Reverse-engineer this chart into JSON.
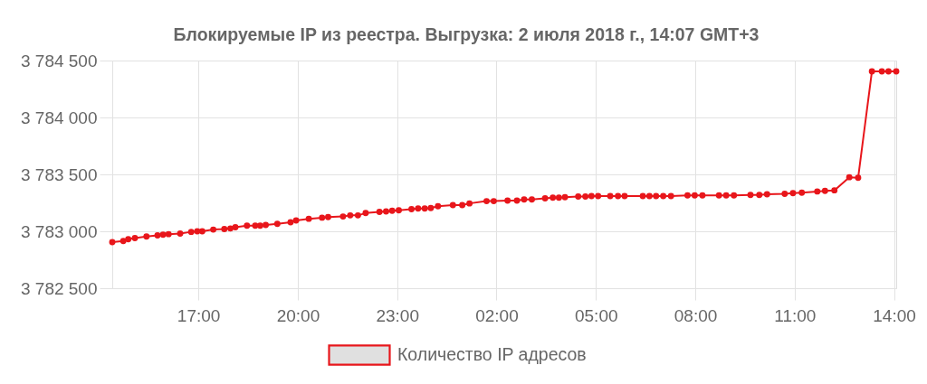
{
  "chart_data": {
    "type": "line",
    "title": "Блокируемые IP из реестра. Выгрузка: 2 июля 2018 г., 14:07 GMT+3",
    "x": [
      "2018-07-01T14:24",
      "2018-07-01T14:44",
      "2018-07-01T14:53",
      "2018-07-01T15:05",
      "2018-07-01T15:26",
      "2018-07-01T15:46",
      "2018-07-01T15:56",
      "2018-07-01T16:06",
      "2018-07-01T16:27",
      "2018-07-01T16:47",
      "2018-07-01T16:58",
      "2018-07-01T17:07",
      "2018-07-01T17:27",
      "2018-07-01T17:47",
      "2018-07-01T17:58",
      "2018-07-01T18:07",
      "2018-07-01T18:28",
      "2018-07-01T18:43",
      "2018-07-01T18:52",
      "2018-07-01T19:02",
      "2018-07-01T19:23",
      "2018-07-01T19:47",
      "2018-07-01T19:57",
      "2018-07-01T20:20",
      "2018-07-01T20:44",
      "2018-07-01T20:55",
      "2018-07-01T21:22",
      "2018-07-01T21:35",
      "2018-07-01T21:49",
      "2018-07-01T22:03",
      "2018-07-01T22:28",
      "2018-07-01T22:40",
      "2018-07-01T22:51",
      "2018-07-01T23:03",
      "2018-07-01T23:26",
      "2018-07-01T23:38",
      "2018-07-01T23:50",
      "2018-07-02T00:01",
      "2018-07-02T00:14",
      "2018-07-02T00:41",
      "2018-07-02T00:58",
      "2018-07-02T01:11",
      "2018-07-02T01:42",
      "2018-07-02T01:55",
      "2018-07-02T02:20",
      "2018-07-02T02:37",
      "2018-07-02T02:50",
      "2018-07-02T03:04",
      "2018-07-02T03:28",
      "2018-07-02T03:42",
      "2018-07-02T03:53",
      "2018-07-02T04:04",
      "2018-07-02T04:28",
      "2018-07-02T04:41",
      "2018-07-02T04:52",
      "2018-07-02T05:04",
      "2018-07-02T05:26",
      "2018-07-02T05:40",
      "2018-07-02T05:52",
      "2018-07-02T06:25",
      "2018-07-02T06:37",
      "2018-07-02T06:49",
      "2018-07-02T07:02",
      "2018-07-02T07:16",
      "2018-07-02T07:46",
      "2018-07-02T07:59",
      "2018-07-02T08:13",
      "2018-07-02T08:43",
      "2018-07-02T08:56",
      "2018-07-02T09:10",
      "2018-07-02T09:40",
      "2018-07-02T09:56",
      "2018-07-02T10:10",
      "2018-07-02T10:42",
      "2018-07-02T10:57",
      "2018-07-02T11:13",
      "2018-07-02T11:41",
      "2018-07-02T11:55",
      "2018-07-02T12:12",
      "2018-07-02T12:39",
      "2018-07-02T12:55",
      "2018-07-02T13:20",
      "2018-07-02T13:38",
      "2018-07-02T13:50",
      "2018-07-02T14:04"
    ],
    "series": [
      {
        "name": "Количество IP адресов",
        "color": "#e8161b",
        "values": [
          3782905,
          3782915,
          3782930,
          3782940,
          3782955,
          3782965,
          3782970,
          3782975,
          3782980,
          3782995,
          3783000,
          3783000,
          3783015,
          3783020,
          3783025,
          3783035,
          3783050,
          3783050,
          3783050,
          3783055,
          3783065,
          3783080,
          3783095,
          3783110,
          3783120,
          3783125,
          3783130,
          3783140,
          3783140,
          3783160,
          3783170,
          3783175,
          3783180,
          3783185,
          3783195,
          3783200,
          3783200,
          3783205,
          3783220,
          3783230,
          3783230,
          3783245,
          3783265,
          3783265,
          3783270,
          3783270,
          3783280,
          3783280,
          3783290,
          3783295,
          3783295,
          3783300,
          3783305,
          3783305,
          3783310,
          3783310,
          3783310,
          3783310,
          3783310,
          3783310,
          3783310,
          3783310,
          3783310,
          3783310,
          3783315,
          3783315,
          3783315,
          3783315,
          3783315,
          3783315,
          3783320,
          3783320,
          3783325,
          3783330,
          3783335,
          3783340,
          3783350,
          3783355,
          3783360,
          3783475,
          3783470,
          3784405,
          3784405,
          3784405,
          3784405
        ]
      }
    ],
    "xlim": [
      "2018-07-01T14:24",
      "2018-07-02T14:04"
    ],
    "xticks": [
      {
        "value": "2018-07-01T17:00",
        "label": "17:00"
      },
      {
        "value": "2018-07-01T20:00",
        "label": "20:00"
      },
      {
        "value": "2018-07-01T23:00",
        "label": "23:00"
      },
      {
        "value": "2018-07-02T02:00",
        "label": "02:00"
      },
      {
        "value": "2018-07-02T05:00",
        "label": "05:00"
      },
      {
        "value": "2018-07-02T08:00",
        "label": "08:00"
      },
      {
        "value": "2018-07-02T11:00",
        "label": "11:00"
      },
      {
        "value": "2018-07-02T14:00",
        "label": "14:00"
      }
    ],
    "ylim": [
      3782500,
      3784500
    ],
    "yticks": [
      {
        "value": 3782500,
        "label": "3 782 500"
      },
      {
        "value": 3783000,
        "label": "3 783 000"
      },
      {
        "value": 3783500,
        "label": "3 783 500"
      },
      {
        "value": 3784000,
        "label": "3 784 000"
      },
      {
        "value": 3784500,
        "label": "3 784 500"
      }
    ],
    "grid": true,
    "legend": "bottom",
    "marker": "circle"
  }
}
